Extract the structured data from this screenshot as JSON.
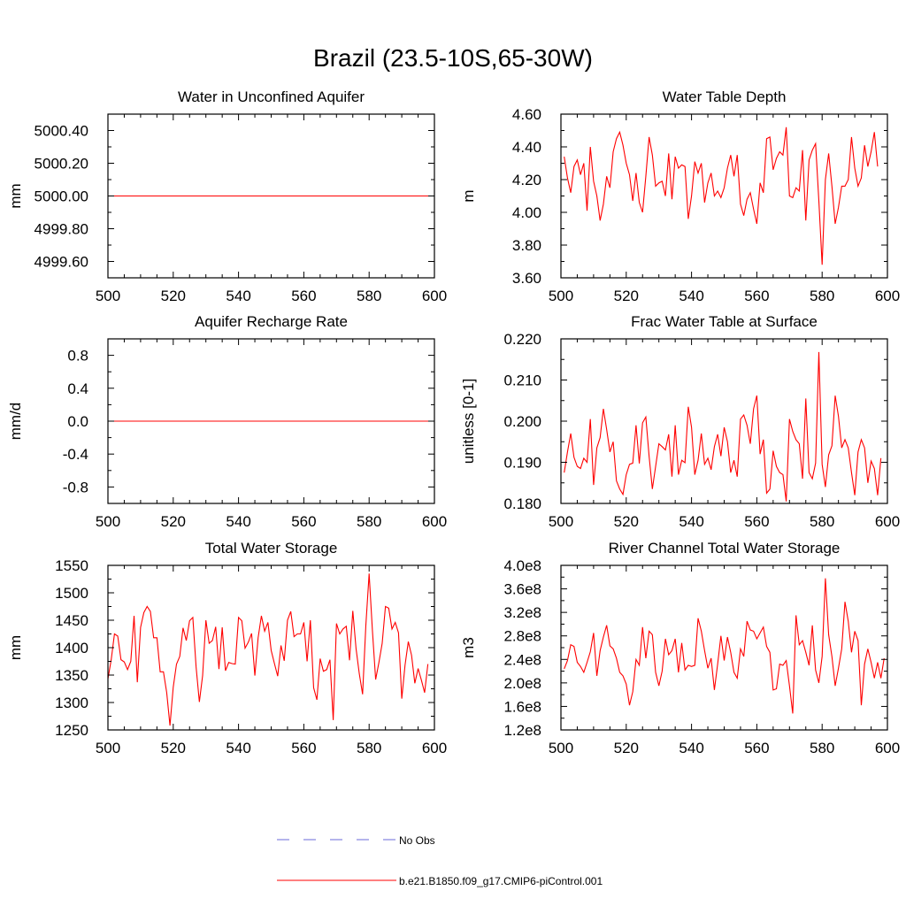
{
  "title": "Brazil (23.5-10S,65-30W)",
  "colors": {
    "model": "#ff0000",
    "obs": "#6a6ad8",
    "axis": "#000000"
  },
  "legend": [
    {
      "label": "No Obs",
      "style": "dashed",
      "color": "#6a6ad8"
    },
    {
      "label": "b.e21.B1850.f09_g17.CMIP6-piControl.001",
      "style": "solid",
      "color": "#ff0000"
    }
  ],
  "chart_data": [
    {
      "type": "line",
      "title": "Water in Unconfined Aquifer",
      "ylabel": "mm",
      "xlim": [
        500,
        600
      ],
      "ylim": [
        4999.5,
        5000.5
      ],
      "xticks": [
        500,
        520,
        540,
        560,
        580,
        600
      ],
      "xtick_labels": [
        "500",
        "520",
        "540",
        "560",
        "580",
        "600"
      ],
      "yticks": [
        4999.6,
        4999.8,
        5000.0,
        5000.2,
        5000.4
      ],
      "ytick_labels": [
        "4999.60",
        "4999.80",
        "5000.00",
        "5000.20",
        "5000.40"
      ],
      "series": [
        {
          "x": [
            500,
            600
          ],
          "y": [
            5000.0,
            5000.0
          ]
        }
      ]
    },
    {
      "type": "line",
      "title": "Water Table Depth",
      "ylabel": "m",
      "xlim": [
        500,
        600
      ],
      "ylim": [
        3.6,
        4.6
      ],
      "xticks": [
        500,
        520,
        540,
        560,
        580,
        600
      ],
      "xtick_labels": [
        "500",
        "520",
        "540",
        "560",
        "580",
        "600"
      ],
      "yticks": [
        3.6,
        3.8,
        4.0,
        4.2,
        4.4,
        4.6
      ],
      "ytick_labels": [
        "3.60",
        "3.80",
        "4.00",
        "4.20",
        "4.40",
        "4.60"
      ],
      "series": [
        {
          "x0": 501,
          "y": [
            4.34,
            4.21,
            4.12,
            4.28,
            4.32,
            4.23,
            4.3,
            4.01,
            4.4,
            4.19,
            4.1,
            3.95,
            4.05,
            4.22,
            4.15,
            4.37,
            4.45,
            4.49,
            4.41,
            4.3,
            4.23,
            4.07,
            4.24,
            4.06,
            4.0,
            4.22,
            4.46,
            4.35,
            4.16,
            4.18,
            4.19,
            4.1,
            4.36,
            4.08,
            4.34,
            4.27,
            4.29,
            4.28,
            3.96,
            4.1,
            4.31,
            4.24,
            4.3,
            4.06,
            4.18,
            4.24,
            4.1,
            4.13,
            4.09,
            4.15,
            4.27,
            4.35,
            4.22,
            4.35,
            4.05,
            3.98,
            4.08,
            4.12,
            4.02,
            3.93,
            4.18,
            4.12,
            4.45,
            4.46,
            4.26,
            4.33,
            4.37,
            4.35,
            4.52,
            4.1,
            4.09,
            4.15,
            4.13,
            4.38,
            3.95,
            4.32,
            4.38,
            4.42,
            4.07,
            3.68,
            4.2,
            4.36,
            4.16,
            3.93,
            4.03,
            4.16,
            4.16,
            4.2,
            4.46,
            4.27,
            4.16,
            4.21,
            4.41,
            4.28,
            4.37,
            4.49,
            4.28
          ]
        }
      ]
    },
    {
      "type": "line",
      "title": "Aquifer Recharge Rate",
      "ylabel": "mm/d",
      "xlim": [
        500,
        600
      ],
      "ylim": [
        -1.0,
        1.0
      ],
      "xticks": [
        500,
        520,
        540,
        560,
        580,
        600
      ],
      "xtick_labels": [
        "500",
        "520",
        "540",
        "560",
        "580",
        "600"
      ],
      "yticks": [
        -0.8,
        -0.4,
        0.0,
        0.4,
        0.8
      ],
      "ytick_labels": [
        "-0.8",
        "-0.4",
        "0.0",
        "0.4",
        "0.8"
      ],
      "series": [
        {
          "x": [
            500,
            600
          ],
          "y": [
            0.0,
            0.0
          ]
        }
      ]
    },
    {
      "type": "line",
      "title": "Frac Water Table at Surface",
      "ylabel": "unitless [0-1]",
      "xlim": [
        500,
        600
      ],
      "ylim": [
        0.18,
        0.22
      ],
      "xticks": [
        500,
        520,
        540,
        560,
        580,
        600
      ],
      "xtick_labels": [
        "500",
        "520",
        "540",
        "560",
        "580",
        "600"
      ],
      "yticks": [
        0.18,
        0.19,
        0.2,
        0.21,
        0.22
      ],
      "ytick_labels": [
        "0.180",
        "0.190",
        "0.200",
        "0.210",
        "0.220"
      ],
      "series": [
        {
          "x0": 501,
          "y": [
            0.1875,
            0.1925,
            0.197,
            0.1912,
            0.189,
            0.1885,
            0.191,
            0.19,
            0.2005,
            0.1845,
            0.1935,
            0.196,
            0.203,
            0.198,
            0.1925,
            0.195,
            0.1855,
            0.1835,
            0.1822,
            0.187,
            0.1895,
            0.1898,
            0.199,
            0.1897,
            0.1996,
            0.201,
            0.1915,
            0.1835,
            0.189,
            0.1945,
            0.1938,
            0.193,
            0.1968,
            0.1865,
            0.199,
            0.187,
            0.1905,
            0.1899,
            0.2035,
            0.1985,
            0.187,
            0.1905,
            0.197,
            0.1895,
            0.191,
            0.1882,
            0.1938,
            0.1968,
            0.1915,
            0.1985,
            0.195,
            0.1875,
            0.1905,
            0.1865,
            0.2005,
            0.2015,
            0.199,
            0.1945,
            0.203,
            0.2062,
            0.192,
            0.1955,
            0.1825,
            0.1835,
            0.1928,
            0.189,
            0.1875,
            0.187,
            0.1805,
            0.2005,
            0.1975,
            0.1955,
            0.1945,
            0.186,
            0.2055,
            0.1875,
            0.186,
            0.1898,
            0.2168,
            0.1895,
            0.184,
            0.1918,
            0.194,
            0.2062,
            0.2012,
            0.1935,
            0.1955,
            0.1935,
            0.1875,
            0.182,
            0.1925,
            0.1955,
            0.1935,
            0.185,
            0.1903,
            0.1885,
            0.182,
            0.191
          ]
        }
      ]
    },
    {
      "type": "line",
      "title": "Total Water Storage",
      "ylabel": "mm",
      "xlim": [
        500,
        600
      ],
      "ylim": [
        1250,
        1550
      ],
      "xticks": [
        500,
        520,
        540,
        560,
        580,
        600
      ],
      "xtick_labels": [
        "500",
        "520",
        "540",
        "560",
        "580",
        "600"
      ],
      "yticks": [
        1250,
        1300,
        1350,
        1400,
        1450,
        1500,
        1550
      ],
      "ytick_labels": [
        "1250",
        "1300",
        "1350",
        "1400",
        "1450",
        "1500",
        "1550"
      ],
      "series": [
        {
          "x0": 500,
          "y": [
            1343,
            1378,
            1425,
            1421,
            1378,
            1374,
            1360,
            1375,
            1458,
            1337,
            1437,
            1464,
            1475,
            1466,
            1418,
            1418,
            1356,
            1356,
            1318,
            1258,
            1328,
            1370,
            1384,
            1436,
            1413,
            1449,
            1455,
            1365,
            1301,
            1349,
            1450,
            1408,
            1413,
            1438,
            1361,
            1437,
            1358,
            1373,
            1371,
            1370,
            1455,
            1449,
            1399,
            1410,
            1426,
            1349,
            1418,
            1458,
            1430,
            1446,
            1395,
            1371,
            1348,
            1404,
            1376,
            1450,
            1466,
            1420,
            1425,
            1425,
            1446,
            1375,
            1450,
            1327,
            1305,
            1380,
            1357,
            1360,
            1378,
            1268,
            1444,
            1425,
            1434,
            1439,
            1377,
            1467,
            1398,
            1352,
            1315,
            1441,
            1535,
            1432,
            1342,
            1373,
            1408,
            1475,
            1472,
            1434,
            1446,
            1427,
            1307,
            1368,
            1411,
            1386,
            1335,
            1362,
            1341,
            1318,
            1370
          ]
        }
      ]
    },
    {
      "type": "line",
      "title": "River Channel Total Water Storage",
      "ylabel": "m3",
      "xlim": [
        500,
        600
      ],
      "ylim": [
        120000000,
        400000000
      ],
      "xticks": [
        500,
        520,
        540,
        560,
        580,
        600
      ],
      "xtick_labels": [
        "500",
        "520",
        "540",
        "560",
        "580",
        "600"
      ],
      "yticks": [
        120000000,
        160000000,
        200000000,
        240000000,
        280000000,
        320000000,
        360000000,
        400000000
      ],
      "ytick_labels": [
        "1.2e8",
        "1.6e8",
        "2.0e8",
        "2.4e8",
        "2.8e8",
        "3.2e8",
        "3.6e8",
        "4.0e8"
      ],
      "series": [
        {
          "x0": 501,
          "y": [
            224000000.0,
            238000000.0,
            265000000.0,
            262000000.0,
            235000000.0,
            228000000.0,
            218000000.0,
            235000000.0,
            253000000.0,
            285000000.0,
            212000000.0,
            255000000.0,
            278000000.0,
            298000000.0,
            263000000.0,
            258000000.0,
            242000000.0,
            218000000.0,
            212000000.0,
            198000000.0,
            162000000.0,
            185000000.0,
            240000000.0,
            230000000.0,
            295000000.0,
            242000000.0,
            288000000.0,
            282000000.0,
            218000000.0,
            195000000.0,
            220000000.0,
            275000000.0,
            248000000.0,
            255000000.0,
            275000000.0,
            218000000.0,
            268000000.0,
            222000000.0,
            230000000.0,
            228000000.0,
            230000000.0,
            310000000.0,
            288000000.0,
            255000000.0,
            225000000.0,
            242000000.0,
            188000000.0,
            232000000.0,
            280000000.0,
            238000000.0,
            278000000.0,
            252000000.0,
            218000000.0,
            208000000.0,
            258000000.0,
            245000000.0,
            305000000.0,
            290000000.0,
            288000000.0,
            275000000.0,
            285000000.0,
            295000000.0,
            262000000.0,
            252000000.0,
            188000000.0,
            190000000.0,
            232000000.0,
            230000000.0,
            238000000.0,
            195000000.0,
            148000000.0,
            315000000.0,
            265000000.0,
            272000000.0,
            252000000.0,
            230000000.0,
            298000000.0,
            222000000.0,
            200000000.0,
            245000000.0,
            378000000.0,
            282000000.0,
            245000000.0,
            195000000.0,
            225000000.0,
            258000000.0,
            338000000.0,
            305000000.0,
            252000000.0,
            288000000.0,
            272000000.0,
            162000000.0,
            232000000.0,
            258000000.0,
            235000000.0,
            208000000.0,
            235000000.0,
            208000000.0,
            242000000.0
          ]
        }
      ]
    }
  ]
}
